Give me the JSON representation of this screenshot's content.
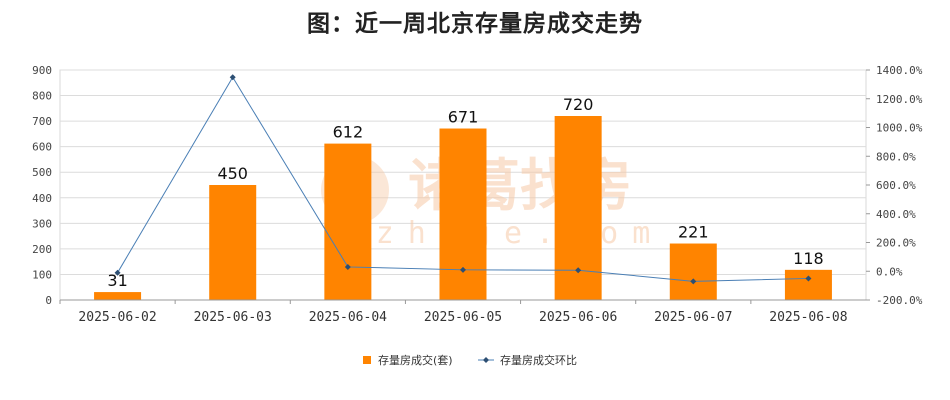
{
  "chart_data": {
    "type": "bar",
    "title": "图：近一周北京存量房成交走势",
    "categories": [
      "2025-06-02",
      "2025-06-03",
      "2025-06-04",
      "2025-06-05",
      "2025-06-06",
      "2025-06-07",
      "2025-06-08"
    ],
    "series": [
      {
        "name": "存量房成交(套)",
        "type": "bar",
        "axis": "left",
        "color": "#ff8400",
        "values": [
          31,
          450,
          612,
          671,
          720,
          221,
          118
        ]
      },
      {
        "name": "存量房成交环比",
        "type": "line",
        "axis": "right",
        "color": "#4a7fb5",
        "values": [
          -10,
          1350,
          30,
          10,
          7,
          -70,
          -50
        ]
      }
    ],
    "left_axis": {
      "min": 0,
      "max": 900,
      "step": 100,
      "ticks": [
        "0",
        "100",
        "200",
        "300",
        "400",
        "500",
        "600",
        "700",
        "800",
        "900"
      ]
    },
    "right_axis": {
      "min": -200,
      "max": 1400,
      "step": 200,
      "ticks": [
        "-200.0%",
        "0.0%",
        "200.0%",
        "400.0%",
        "600.0%",
        "800.0%",
        "1000.0%",
        "1200.0%",
        "1400.0%"
      ]
    },
    "grid": true,
    "legend_position": "bottom",
    "watermark": {
      "text": "诸葛找房",
      "sub": "zhuge.com"
    }
  }
}
